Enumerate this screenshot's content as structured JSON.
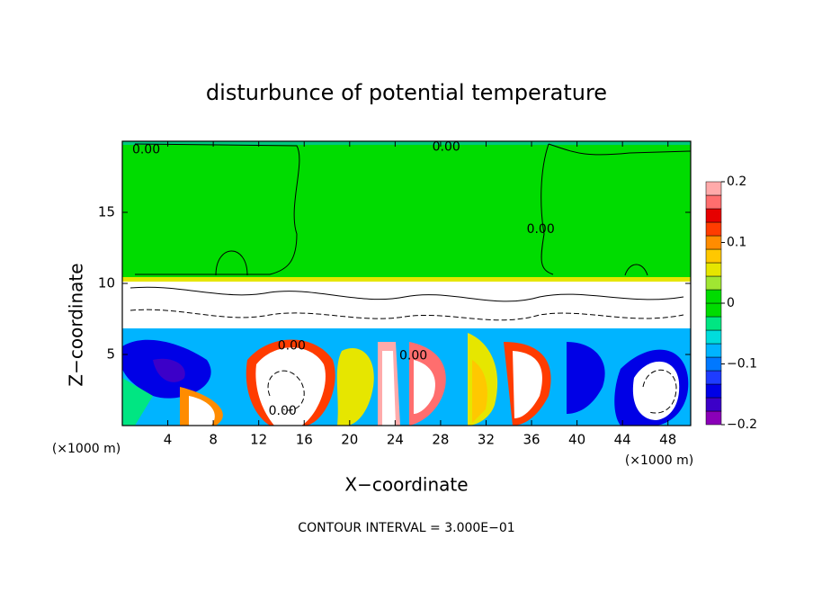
{
  "chart_data": {
    "type": "contour",
    "title": "disturbunce of potential temperature",
    "x_label": "X−coordinate",
    "y_label": "Z−coordinate",
    "x_unit_left": "(×1000 m)",
    "x_unit_right": "(×1000 m)",
    "footer": "CONTOUR INTERVAL = 3.000E−01",
    "xlim": [
      0,
      50
    ],
    "ylim": [
      0,
      20
    ],
    "xticks": [
      4,
      8,
      12,
      16,
      20,
      24,
      28,
      32,
      36,
      40,
      44,
      48
    ],
    "yticks": [
      5,
      10,
      15
    ],
    "contour_labels": [
      {
        "text": "0.00",
        "x": 2.1,
        "z": 19.4
      },
      {
        "text": "0.00",
        "x": 28.5,
        "z": 19.6
      },
      {
        "text": "0.00",
        "x": 36.8,
        "z": 13.8
      },
      {
        "text": "0.00",
        "x": 14.9,
        "z": 5.6
      },
      {
        "text": "0.00",
        "x": 25.6,
        "z": 4.9
      },
      {
        "text": "0.00",
        "x": 14.1,
        "z": 1.0
      }
    ],
    "colorbar": {
      "lim": [
        -0.2,
        0.2
      ],
      "ticks": [
        {
          "value": -0.2,
          "label": "−0.2"
        },
        {
          "value": -0.1,
          "label": "−0.1"
        },
        0,
        0.1,
        0.2
      ],
      "colors": [
        "#8a00b8",
        "#3c00c8",
        "#0000e6",
        "#1e3cff",
        "#0078ff",
        "#00b4ff",
        "#00dcdc",
        "#00e682",
        "#00dc00",
        "#00dc00",
        "#a0e632",
        "#e6e600",
        "#ffc800",
        "#ff8c00",
        "#ff3c00",
        "#e60000",
        "#ff6e6e",
        "#ffaaaa"
      ]
    }
  }
}
